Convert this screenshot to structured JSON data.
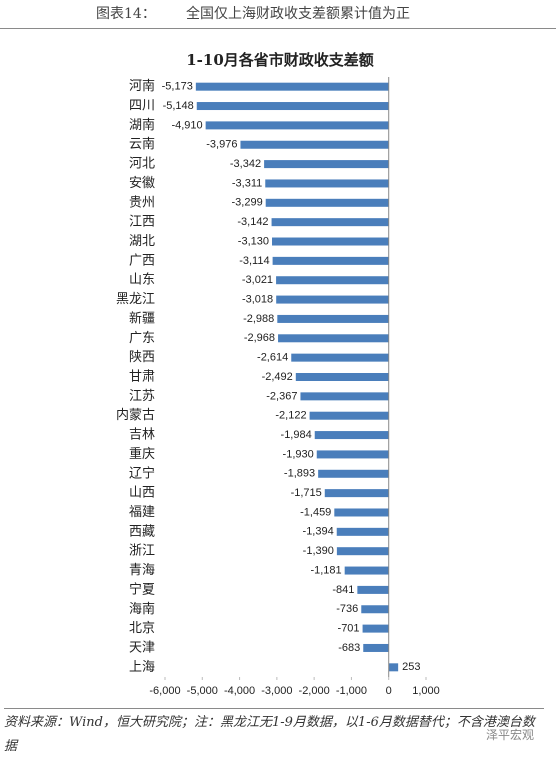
{
  "header": {
    "label": "图表14：",
    "title": "全国仅上海财政收支差额累计值为正"
  },
  "chart_data": {
    "type": "hbar",
    "title": "1-10月各省市财政收支差额",
    "categories": [
      "河南",
      "四川",
      "湖南",
      "云南",
      "河北",
      "安徽",
      "贵州",
      "江西",
      "湖北",
      "广西",
      "山东",
      "黑龙江",
      "新疆",
      "广东",
      "陕西",
      "甘肃",
      "江苏",
      "内蒙古",
      "吉林",
      "重庆",
      "辽宁",
      "山西",
      "福建",
      "西藏",
      "浙江",
      "青海",
      "宁夏",
      "海南",
      "北京",
      "天津",
      "上海"
    ],
    "values": [
      -5173,
      -5148,
      -4910,
      -3976,
      -3342,
      -3311,
      -3299,
      -3142,
      -3130,
      -3114,
      -3021,
      -3018,
      -2988,
      -2968,
      -2614,
      -2492,
      -2367,
      -2122,
      -1984,
      -1930,
      -1893,
      -1715,
      -1459,
      -1394,
      -1390,
      -1181,
      -841,
      -736,
      -701,
      -683,
      253
    ],
    "value_labels": [
      "-5,173",
      "-5,148",
      "-4,910",
      "-3,976",
      "-3,342",
      "-3,311",
      "-3,299",
      "-3,142",
      "-3,130",
      "-3,114",
      "-3,021",
      "-3,018",
      "-2,988",
      "-2,968",
      "-2,614",
      "-2,492",
      "-2,367",
      "-2,122",
      "-1,984",
      "-1,930",
      "-1,893",
      "-1,715",
      "-1,459",
      "-1,394",
      "-1,390",
      "-1,181",
      "-841",
      "-736",
      "-701",
      "-683",
      "253"
    ],
    "color": "#4a7ebb",
    "xlim": [
      -6000,
      1000
    ],
    "xticks": [
      {
        "value": -6000,
        "label": "-6,000"
      },
      {
        "value": -5000,
        "label": "-5,000"
      },
      {
        "value": -4000,
        "label": "-4,000"
      },
      {
        "value": -3000,
        "label": "-3,000"
      },
      {
        "value": -2000,
        "label": "-2,000"
      },
      {
        "value": -1000,
        "label": "-1,000"
      },
      0,
      {
        "value": 1000,
        "label": "1,000"
      }
    ],
    "grid": false
  },
  "footer": "资料来源：Wind，恒大研究院；注：黑龙江无1-9月数据，以1-6月数据替代；不含港澳台数据",
  "watermark": "泽平宏观"
}
